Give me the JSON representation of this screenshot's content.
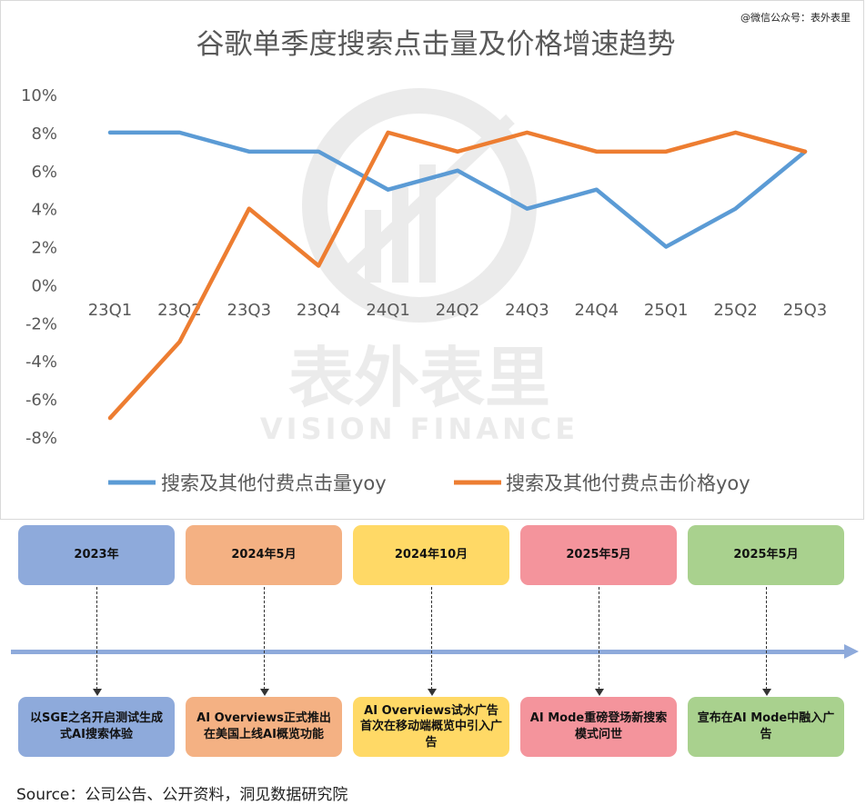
{
  "watermark_top": "@微信公众号：表外表里",
  "watermark_center": {
    "cn": "表外表里",
    "en": "VISION FINANCE"
  },
  "chart_data": {
    "type": "line",
    "title": "谷歌单季度搜索点击量及价格增速趋势",
    "categories": [
      "23Q1",
      "23Q2",
      "23Q3",
      "23Q4",
      "24Q1",
      "24Q2",
      "24Q3",
      "24Q4",
      "25Q1",
      "25Q2",
      "25Q3"
    ],
    "yticks": [
      "10%",
      "8%",
      "6%",
      "4%",
      "2%",
      "0%",
      "-2%",
      "-4%",
      "-6%",
      "-8%"
    ],
    "ylim": [
      -8,
      10
    ],
    "series": [
      {
        "name": "搜索及其他付费点击量yoy",
        "color": "#5b9bd5",
        "values": [
          8,
          8,
          7,
          7,
          5,
          6,
          4,
          5,
          2,
          4,
          7
        ]
      },
      {
        "name": "搜索及其他付费点击价格yoy",
        "color": "#ed7d31",
        "values": [
          -7,
          -3,
          4,
          1,
          8,
          7,
          8,
          7,
          7,
          8,
          7
        ]
      }
    ],
    "legend": "bottom",
    "grid": false
  },
  "timeline": [
    {
      "date": "2023年",
      "desc": "以SGE之名开启测试生成式AI搜索体验",
      "color": "#8eaadb"
    },
    {
      "date": "2024年5月",
      "desc": "AI Overviews正式推出在美国上线AI概览功能",
      "color": "#f4b183"
    },
    {
      "date": "2024年10月",
      "desc": "AI Overviews试水广告首次在移动端概览中引入广告",
      "color": "#ffd966"
    },
    {
      "date": "2025年5月",
      "desc": "AI Mode重磅登场新搜索模式问世",
      "color": "#f4949c"
    },
    {
      "date": "2025年5月",
      "desc": "宣布在AI Mode中融入广告",
      "color": "#a9d18e"
    }
  ],
  "source": "Source：公司公告、公开资料，洞见数据研究院"
}
